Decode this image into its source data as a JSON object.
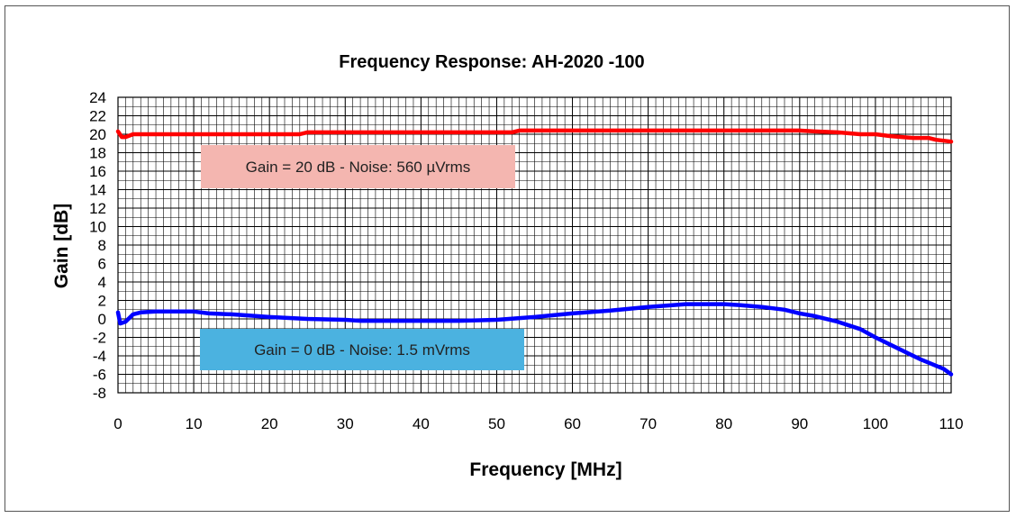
{
  "chart_data": {
    "type": "line",
    "title": "Frequency Response: AH-2020 -100",
    "xlabel": "Frequency [MHz]",
    "ylabel": "Gain [dB]",
    "xlim": [
      0,
      110
    ],
    "ylim": [
      -8,
      24
    ],
    "xticks": [
      0,
      10,
      20,
      30,
      40,
      50,
      60,
      70,
      80,
      90,
      100,
      110
    ],
    "yticks": [
      -8,
      -6,
      -4,
      -2,
      0,
      2,
      4,
      6,
      8,
      10,
      12,
      14,
      16,
      18,
      20,
      22,
      24
    ],
    "grid": true,
    "minor_grid_x_step": 1,
    "minor_grid_y_step": 1,
    "series": [
      {
        "color": "#ff0000",
        "x": [
          0,
          0.5,
          1,
          2,
          5,
          10,
          20,
          24,
          25,
          30,
          40,
          50,
          52,
          53,
          60,
          70,
          80,
          85,
          90,
          92,
          95,
          98,
          100,
          102,
          105,
          107,
          108,
          110
        ],
        "y": [
          20.3,
          19.7,
          19.7,
          20.0,
          20.0,
          20.0,
          20.0,
          20.0,
          20.2,
          20.2,
          20.2,
          20.2,
          20.2,
          20.4,
          20.4,
          20.4,
          20.4,
          20.4,
          20.4,
          20.3,
          20.2,
          20.0,
          20.0,
          19.8,
          19.6,
          19.6,
          19.4,
          19.2
        ]
      },
      {
        "color": "#0000ff",
        "x": [
          0,
          0.3,
          1,
          2,
          3,
          5,
          10,
          12,
          15,
          20,
          25,
          30,
          32,
          35,
          40,
          45,
          50,
          55,
          60,
          65,
          70,
          75,
          80,
          82,
          85,
          88,
          90,
          92,
          95,
          98,
          100,
          103,
          106,
          109,
          110
        ],
        "y": [
          0.7,
          -0.5,
          -0.3,
          0.5,
          0.7,
          0.8,
          0.8,
          0.6,
          0.5,
          0.2,
          0.0,
          -0.1,
          -0.2,
          -0.2,
          -0.2,
          -0.2,
          -0.1,
          0.2,
          0.6,
          0.9,
          1.3,
          1.6,
          1.6,
          1.5,
          1.3,
          1.0,
          0.6,
          0.3,
          -0.3,
          -1.1,
          -2.0,
          -3.2,
          -4.4,
          -5.4,
          -6.0
        ]
      }
    ],
    "annotations": [
      {
        "text": "Gain = 20 dB  -  Noise: 560 µVrms",
        "color": "#f4b6b0"
      },
      {
        "text": "Gain = 0 dB  -  Noise: 1.5 mVrms",
        "color": "#4bb2e0"
      }
    ]
  }
}
